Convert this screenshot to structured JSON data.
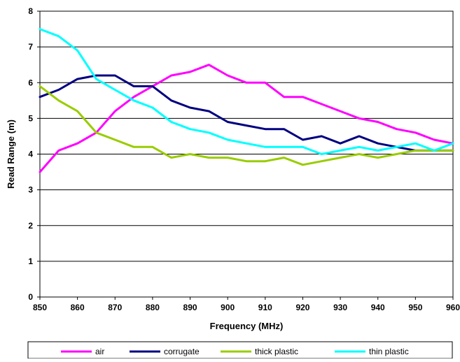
{
  "chart_data": {
    "type": "line",
    "xlabel": "Frequency (MHz)",
    "ylabel": "Read Range (m)",
    "xlim": [
      850,
      960
    ],
    "ylim": [
      0,
      8
    ],
    "x_ticks": [
      850,
      860,
      870,
      880,
      890,
      900,
      910,
      920,
      930,
      940,
      950,
      960
    ],
    "y_ticks": [
      0,
      1,
      2,
      3,
      4,
      5,
      6,
      7,
      8
    ],
    "grid": "horizontal",
    "legend_position": "bottom",
    "x": [
      850,
      855,
      860,
      865,
      870,
      875,
      880,
      885,
      890,
      895,
      900,
      905,
      910,
      915,
      920,
      925,
      930,
      935,
      940,
      945,
      950,
      955,
      960
    ],
    "series": [
      {
        "name": "air",
        "color": "#ff00ff",
        "values": [
          3.5,
          4.1,
          4.3,
          4.6,
          5.2,
          5.6,
          5.9,
          6.2,
          6.3,
          6.5,
          6.2,
          6.0,
          6.0,
          5.6,
          5.6,
          5.4,
          5.2,
          5.0,
          4.9,
          4.7,
          4.6,
          4.4,
          4.3
        ]
      },
      {
        "name": "corrugate",
        "color": "#000080",
        "values": [
          5.6,
          5.8,
          6.1,
          6.2,
          6.2,
          5.9,
          5.9,
          5.5,
          5.3,
          5.2,
          4.9,
          4.8,
          4.7,
          4.7,
          4.4,
          4.5,
          4.3,
          4.5,
          4.3,
          4.2,
          4.1,
          4.1,
          4.1
        ]
      },
      {
        "name": "thick plastic",
        "color": "#99cc00",
        "values": [
          5.9,
          5.5,
          5.2,
          4.6,
          4.4,
          4.2,
          4.2,
          3.9,
          4.0,
          3.9,
          3.9,
          3.8,
          3.8,
          3.9,
          3.7,
          3.8,
          3.9,
          4.0,
          3.9,
          4.0,
          4.1,
          4.1,
          4.1
        ]
      },
      {
        "name": "thin plastic",
        "color": "#00ffff",
        "values": [
          7.5,
          7.3,
          6.9,
          6.1,
          5.8,
          5.5,
          5.3,
          4.9,
          4.7,
          4.6,
          4.4,
          4.3,
          4.2,
          4.2,
          4.2,
          4.0,
          4.1,
          4.2,
          4.1,
          4.2,
          4.3,
          4.1,
          4.3
        ]
      }
    ]
  }
}
